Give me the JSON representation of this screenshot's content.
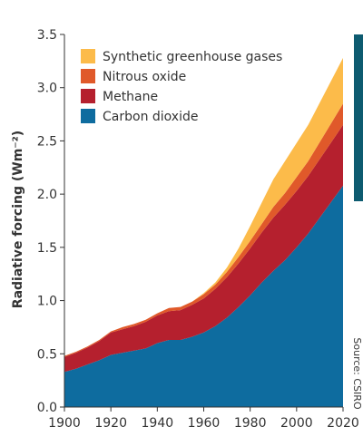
{
  "chart_data": {
    "type": "area",
    "stacked": true,
    "title": "",
    "xlabel": "",
    "ylabel": "Radiative forcing (Wm⁻²)",
    "xlim": [
      1900,
      2020
    ],
    "ylim": [
      0,
      3.5
    ],
    "x_ticks": [
      1900,
      1920,
      1940,
      1960,
      1980,
      2000,
      2020
    ],
    "y_ticks": [
      "0.0",
      "0.5",
      "1.0",
      "1.5",
      "2.0",
      "2.5",
      "3.0",
      "3.5"
    ],
    "grid": false,
    "legend_position": "top-left",
    "source": "Source: CSIRO",
    "x": [
      1900,
      1905,
      1910,
      1915,
      1920,
      1925,
      1930,
      1935,
      1940,
      1945,
      1950,
      1955,
      1960,
      1965,
      1970,
      1975,
      1980,
      1985,
      1990,
      1995,
      2000,
      2005,
      2010,
      2015,
      2020
    ],
    "series": [
      {
        "name": "Carbon dioxide",
        "color": "#0e6c9f",
        "values": [
          0.33,
          0.36,
          0.4,
          0.44,
          0.49,
          0.51,
          0.53,
          0.55,
          0.6,
          0.63,
          0.63,
          0.66,
          0.7,
          0.76,
          0.84,
          0.94,
          1.05,
          1.17,
          1.28,
          1.38,
          1.5,
          1.63,
          1.78,
          1.93,
          2.08
        ]
      },
      {
        "name": "Methane",
        "color": "#b5202e",
        "values": [
          0.14,
          0.15,
          0.16,
          0.18,
          0.21,
          0.22,
          0.23,
          0.25,
          0.26,
          0.27,
          0.28,
          0.3,
          0.32,
          0.35,
          0.38,
          0.41,
          0.44,
          0.47,
          0.5,
          0.52,
          0.53,
          0.54,
          0.55,
          0.56,
          0.57
        ]
      },
      {
        "name": "Nitrous oxide",
        "color": "#e0592a",
        "values": [
          0.01,
          0.01,
          0.01,
          0.01,
          0.01,
          0.02,
          0.02,
          0.02,
          0.02,
          0.03,
          0.03,
          0.03,
          0.04,
          0.04,
          0.05,
          0.06,
          0.07,
          0.08,
          0.1,
          0.11,
          0.13,
          0.14,
          0.16,
          0.18,
          0.2
        ]
      },
      {
        "name": "Synthetic greenhouse gases",
        "color": "#fcbb4a",
        "values": [
          0.0,
          0.0,
          0.0,
          0.0,
          0.0,
          0.0,
          0.0,
          0.0,
          0.0,
          0.0,
          0.0,
          0.0,
          0.01,
          0.02,
          0.04,
          0.08,
          0.14,
          0.2,
          0.26,
          0.3,
          0.32,
          0.34,
          0.37,
          0.4,
          0.43
        ]
      }
    ]
  }
}
